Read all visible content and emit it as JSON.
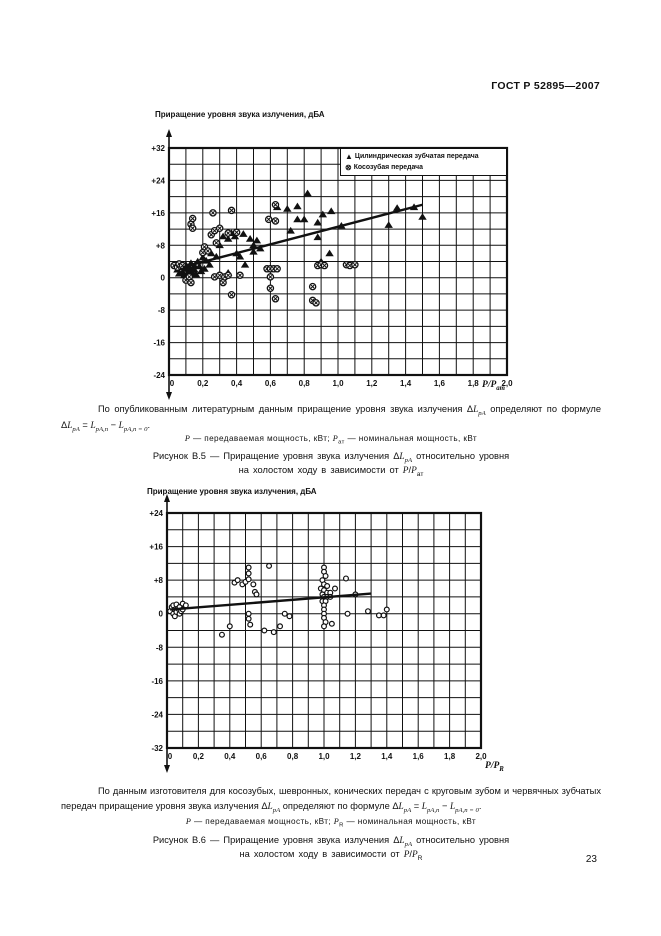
{
  "page": {
    "header": "ГОСТ Р 52895—2007",
    "page_number": "23"
  },
  "texts": {
    "para1": [
      {
        "text": "По опубликованным литературным данным приращение  уровня звука излучения Δ"
      },
      {
        "text": "L",
        "italic": true
      },
      {
        "text": "pA",
        "sub": true,
        "italic": true
      },
      {
        "text": "  определяют по формуле Δ"
      },
      {
        "text": "L",
        "italic": true
      },
      {
        "text": "pA",
        "sub": true,
        "italic": true
      },
      {
        "text": " = "
      },
      {
        "text": "L",
        "italic": true
      },
      {
        "text": "pA,п",
        "sub": true,
        "italic": true
      },
      {
        "text": " − "
      },
      {
        "text": "L",
        "italic": true
      },
      {
        "text": "pA,п = 0",
        "sub": true,
        "italic": true
      },
      {
        "text": "."
      }
    ],
    "note1": [
      {
        "text": "P",
        "italic": true
      },
      {
        "text": " — передаваемая мощность, кВт; "
      },
      {
        "text": "P",
        "italic": true
      },
      {
        "text": "ат",
        "sub": true
      },
      {
        "text": " — номинальная мощность, кВт"
      }
    ],
    "caption1_line1": [
      {
        "text": "Рисунок В.5 — Приращение уровня звука излучения Δ"
      },
      {
        "text": "L",
        "italic": true
      },
      {
        "text": "pA",
        "sub": true,
        "italic": true
      },
      {
        "text": " относительно  уровня"
      }
    ],
    "caption1_line2": [
      {
        "text": "на холостом ходу в зависимости от "
      },
      {
        "text": "P",
        "italic": true
      },
      {
        "text": "/"
      },
      {
        "text": "P",
        "italic": true
      },
      {
        "text": "ат",
        "sub": true
      }
    ],
    "para2": [
      {
        "text": "По данным изготовителя для косозубых, шевронных, конических передач с круговым зубом и червячных зубчатых передач приращение уровня звука излучения Δ"
      },
      {
        "text": "L",
        "italic": true
      },
      {
        "text": "pA",
        "sub": true,
        "italic": true
      },
      {
        "text": " определяют по формуле Δ"
      },
      {
        "text": "L",
        "italic": true
      },
      {
        "text": "pA",
        "sub": true,
        "italic": true
      },
      {
        "text": " = "
      },
      {
        "text": "L",
        "italic": true
      },
      {
        "text": "pA,п",
        "sub": true,
        "italic": true
      },
      {
        "text": " − "
      },
      {
        "text": "L",
        "italic": true
      },
      {
        "text": "pA,п = 0",
        "sub": true,
        "italic": true
      },
      {
        "text": "."
      }
    ],
    "note2": [
      {
        "text": "P",
        "italic": true
      },
      {
        "text": " — передаваемая мощность, кВт; "
      },
      {
        "text": "P",
        "italic": true
      },
      {
        "text": "R",
        "sub": true
      },
      {
        "text": " — номинальная мощность, кВт"
      }
    ],
    "caption2_line1": [
      {
        "text": "Рисунок В.6 — Приращение уровня звука излучения  Δ"
      },
      {
        "text": "L",
        "italic": true
      },
      {
        "text": "pA",
        "sub": true,
        "italic": true
      },
      {
        "text": "  относительно уровня"
      }
    ],
    "caption2_line2": [
      {
        "text": "на холостом ходу в зависимости от "
      },
      {
        "text": "P",
        "italic": true
      },
      {
        "text": "/"
      },
      {
        "text": "P",
        "italic": true
      },
      {
        "text": "R",
        "sub": true
      }
    ]
  },
  "chart_data": [
    {
      "type": "scatter",
      "figure": "В.5",
      "y_axis_title": "Приращение уровня звука излучения, дБА",
      "xlabel": "P/Pат",
      "x_axis_label_segments": [
        {
          "text": "P",
          "italic": true
        },
        {
          "text": "/"
        },
        {
          "text": "P",
          "italic": true
        },
        {
          "text": "ат",
          "sub": true
        }
      ],
      "xlim": [
        0,
        2.0
      ],
      "ylim": [
        -24,
        32
      ],
      "x_tick_step": 0.2,
      "y_tick_step": 8,
      "x_grid_step": 0.1,
      "y_grid_step": 4,
      "x_tick_labels": [
        "0",
        "0,2",
        "0,4",
        "0,6",
        "0,8",
        "1,0",
        "1,2",
        "1,4",
        "1,6",
        "1,8",
        "2,0"
      ],
      "y_tick_labels": [
        "+32",
        "+24",
        "+16",
        "+8",
        "0",
        "-8",
        "-16",
        "-24"
      ],
      "legend_position": "top-right-inside",
      "grid": true,
      "trend_line": {
        "x1": 0.08,
        "y1": 2.6,
        "x2": 1.5,
        "y2": 18.0
      },
      "series": [
        {
          "name": "Цилиндрическая зубчатая передача",
          "marker": "filled-triangle",
          "points": [
            [
              0.05,
              2.0
            ],
            [
              0.06,
              1.0
            ],
            [
              0.07,
              2.6
            ],
            [
              0.08,
              1.4
            ],
            [
              0.09,
              0.6
            ],
            [
              0.1,
              2.2
            ],
            [
              0.1,
              3.2
            ],
            [
              0.11,
              1.2
            ],
            [
              0.12,
              2.6
            ],
            [
              0.12,
              0.6
            ],
            [
              0.13,
              3.6
            ],
            [
              0.13,
              1.8
            ],
            [
              0.14,
              1.0
            ],
            [
              0.15,
              3.0
            ],
            [
              0.15,
              2.0
            ],
            [
              0.16,
              0.8
            ],
            [
              0.17,
              4.0
            ],
            [
              0.18,
              2.8
            ],
            [
              0.19,
              1.6
            ],
            [
              0.2,
              5.0
            ],
            [
              0.21,
              2.2
            ],
            [
              0.22,
              4.2
            ],
            [
              0.24,
              3.2
            ],
            [
              0.25,
              6.0
            ],
            [
              0.28,
              5.2
            ],
            [
              0.3,
              8.0
            ],
            [
              0.32,
              10.2
            ],
            [
              0.35,
              9.6
            ],
            [
              0.35,
              1.2
            ],
            [
              0.37,
              11.0
            ],
            [
              0.39,
              10.2
            ],
            [
              0.4,
              6.0
            ],
            [
              0.42,
              5.2
            ],
            [
              0.44,
              10.8
            ],
            [
              0.45,
              3.2
            ],
            [
              0.48,
              9.6
            ],
            [
              0.5,
              8.0
            ],
            [
              0.5,
              6.4
            ],
            [
              0.52,
              9.2
            ],
            [
              0.54,
              7.2
            ],
            [
              0.64,
              17.4
            ],
            [
              0.7,
              17.0
            ],
            [
              0.72,
              11.6
            ],
            [
              0.76,
              17.6
            ],
            [
              0.76,
              14.4
            ],
            [
              0.8,
              14.4
            ],
            [
              0.82,
              20.8
            ],
            [
              0.88,
              13.6
            ],
            [
              0.88,
              10.0
            ],
            [
              0.9,
              4.0
            ],
            [
              0.91,
              15.6
            ],
            [
              0.95,
              6.0
            ],
            [
              0.96,
              16.4
            ],
            [
              1.02,
              12.8
            ],
            [
              1.3,
              13.0
            ],
            [
              1.35,
              17.2
            ],
            [
              1.45,
              17.4
            ],
            [
              1.5,
              15.0
            ]
          ]
        },
        {
          "name": "Косозубая передача",
          "marker": "circle-cross",
          "points": [
            [
              0.03,
              3.0
            ],
            [
              0.05,
              2.6
            ],
            [
              0.06,
              3.4
            ],
            [
              0.08,
              3.0
            ],
            [
              0.1,
              -0.6
            ],
            [
              0.12,
              0.2
            ],
            [
              0.13,
              -1.2
            ],
            [
              0.13,
              13.2
            ],
            [
              0.14,
              14.6
            ],
            [
              0.14,
              12.2
            ],
            [
              0.2,
              6.2
            ],
            [
              0.21,
              7.6
            ],
            [
              0.23,
              6.6
            ],
            [
              0.25,
              10.6
            ],
            [
              0.26,
              16.0
            ],
            [
              0.27,
              11.6
            ],
            [
              0.27,
              0.2
            ],
            [
              0.28,
              8.6
            ],
            [
              0.3,
              12.2
            ],
            [
              0.3,
              0.6
            ],
            [
              0.32,
              -1.2
            ],
            [
              0.33,
              0.2
            ],
            [
              0.35,
              11.0
            ],
            [
              0.35,
              0.6
            ],
            [
              0.37,
              16.6
            ],
            [
              0.37,
              -4.2
            ],
            [
              0.4,
              11.2
            ],
            [
              0.42,
              0.6
            ],
            [
              0.58,
              2.2
            ],
            [
              0.6,
              2.2
            ],
            [
              0.62,
              2.2
            ],
            [
              0.64,
              2.2
            ],
            [
              0.6,
              0.2
            ],
            [
              0.6,
              -2.6
            ],
            [
              0.63,
              -5.2
            ],
            [
              0.59,
              14.4
            ],
            [
              0.63,
              18.0
            ],
            [
              0.63,
              14.0
            ],
            [
              0.85,
              -5.6
            ],
            [
              0.87,
              -6.2
            ],
            [
              0.85,
              -2.2
            ],
            [
              0.88,
              3.0
            ],
            [
              0.9,
              3.2
            ],
            [
              0.92,
              3.0
            ],
            [
              1.05,
              3.2
            ],
            [
              1.07,
              3.0
            ],
            [
              1.1,
              3.2
            ]
          ]
        }
      ]
    },
    {
      "type": "scatter",
      "figure": "В.6",
      "y_axis_title": "Приращение уровня звука излучения, дБА",
      "xlabel": "P/PR",
      "x_axis_label_segments": [
        {
          "text": "P",
          "italic": true
        },
        {
          "text": "/"
        },
        {
          "text": "P",
          "italic": true
        },
        {
          "text": "R",
          "sub": true
        }
      ],
      "xlim": [
        0,
        2.0
      ],
      "ylim": [
        -32,
        24
      ],
      "x_tick_step": 0.2,
      "y_tick_step": 8,
      "x_grid_step": 0.1,
      "y_grid_step": 4,
      "x_tick_labels": [
        "0",
        "0,2",
        "0,4",
        "0,6",
        "0,8",
        "1,0",
        "1,2",
        "1,4",
        "1,6",
        "1,8",
        "2,0"
      ],
      "y_tick_labels": [
        "+24",
        "+16",
        "+8",
        "0",
        "-8",
        "-16",
        "-24",
        "-32"
      ],
      "legend_position": "none",
      "grid": true,
      "trend_line": {
        "x1": 0.02,
        "y1": 1.0,
        "x2": 1.3,
        "y2": 4.8
      },
      "series": [
        {
          "name": "",
          "marker": "open-circle",
          "points": [
            [
              0.02,
              0.6
            ],
            [
              0.03,
              1.6
            ],
            [
              0.04,
              0.0
            ],
            [
              0.04,
              2.0
            ],
            [
              0.05,
              1.0
            ],
            [
              0.05,
              -0.6
            ],
            [
              0.06,
              0.4
            ],
            [
              0.06,
              2.2
            ],
            [
              0.07,
              1.2
            ],
            [
              0.08,
              0.0
            ],
            [
              0.08,
              1.6
            ],
            [
              0.09,
              0.6
            ],
            [
              0.1,
              1.0
            ],
            [
              0.1,
              2.4
            ],
            [
              0.12,
              2.0
            ],
            [
              0.35,
              -5.0
            ],
            [
              0.4,
              -3.0
            ],
            [
              0.43,
              7.4
            ],
            [
              0.45,
              8.0
            ],
            [
              0.48,
              7.0
            ],
            [
              0.5,
              7.6
            ],
            [
              0.52,
              8.2
            ],
            [
              0.52,
              9.6
            ],
            [
              0.52,
              11.0
            ],
            [
              0.55,
              7.0
            ],
            [
              0.56,
              5.2
            ],
            [
              0.57,
              4.6
            ],
            [
              0.52,
              0.0
            ],
            [
              0.52,
              -1.2
            ],
            [
              0.53,
              -2.6
            ],
            [
              0.65,
              11.4
            ],
            [
              0.62,
              -4.0
            ],
            [
              0.68,
              -4.4
            ],
            [
              0.72,
              -3.0
            ],
            [
              0.75,
              0.0
            ],
            [
              0.78,
              -0.6
            ],
            [
              1.0,
              11.0
            ],
            [
              1.0,
              10.0
            ],
            [
              1.01,
              9.0
            ],
            [
              0.99,
              8.0
            ],
            [
              1.0,
              7.0
            ],
            [
              1.02,
              6.6
            ],
            [
              0.98,
              6.0
            ],
            [
              1.0,
              5.6
            ],
            [
              1.02,
              5.0
            ],
            [
              1.04,
              5.0
            ],
            [
              0.99,
              4.6
            ],
            [
              1.0,
              4.0
            ],
            [
              1.02,
              4.0
            ],
            [
              1.04,
              4.0
            ],
            [
              0.99,
              3.0
            ],
            [
              1.01,
              3.0
            ],
            [
              1.0,
              2.0
            ],
            [
              1.0,
              1.0
            ],
            [
              1.0,
              0.0
            ],
            [
              1.0,
              -1.0
            ],
            [
              1.01,
              -2.0
            ],
            [
              1.0,
              -3.0
            ],
            [
              1.05,
              -2.4
            ],
            [
              1.07,
              6.0
            ],
            [
              1.14,
              8.4
            ],
            [
              1.2,
              4.6
            ],
            [
              1.15,
              0.0
            ],
            [
              1.28,
              0.6
            ],
            [
              1.35,
              -0.4
            ],
            [
              1.38,
              -0.4
            ],
            [
              1.4,
              1.0
            ]
          ]
        }
      ]
    }
  ]
}
